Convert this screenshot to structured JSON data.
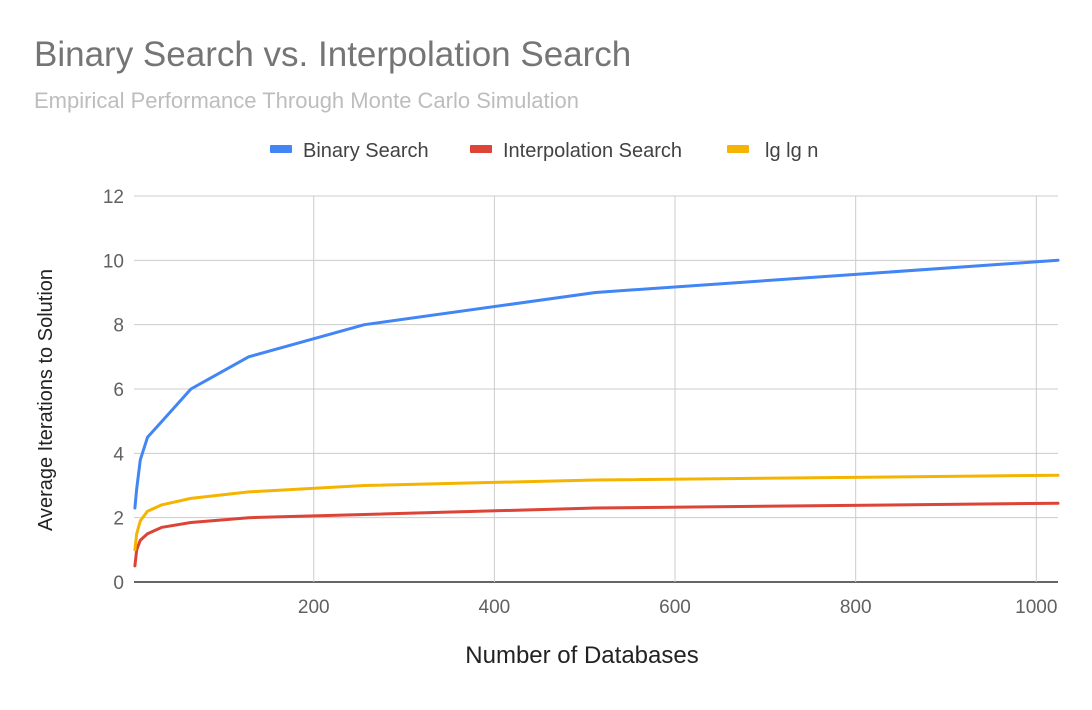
{
  "chart_data": {
    "type": "line",
    "title": "Binary Search vs. Interpolation Search",
    "subtitle": "Empirical Performance Through Monte Carlo Simulation",
    "xlabel": "Number of Databases",
    "ylabel": "Average Iterations to Solution",
    "xlim": [
      1,
      1024
    ],
    "ylim": [
      0,
      12
    ],
    "x_ticks": [
      200,
      400,
      600,
      800,
      1000
    ],
    "y_ticks": [
      0,
      2,
      4,
      6,
      8,
      10,
      12
    ],
    "grid": true,
    "legend_position": "top",
    "x": [
      2,
      4,
      8,
      16,
      32,
      64,
      128,
      256,
      512,
      1024
    ],
    "series": [
      {
        "name": "Binary Search",
        "color": "#4285f4",
        "values": [
          2.3,
          2.9,
          3.8,
          4.5,
          5.0,
          6.0,
          7.0,
          8.0,
          9.0,
          10.0
        ]
      },
      {
        "name": "Interpolation Search",
        "color": "#db4437",
        "values": [
          0.5,
          1.0,
          1.3,
          1.5,
          1.7,
          1.85,
          2.0,
          2.1,
          2.3,
          2.45
        ]
      },
      {
        "name": "lg lg n",
        "color": "#f4b400",
        "values": [
          1.0,
          1.5,
          1.9,
          2.2,
          2.4,
          2.6,
          2.8,
          3.0,
          3.17,
          3.32
        ]
      }
    ]
  }
}
